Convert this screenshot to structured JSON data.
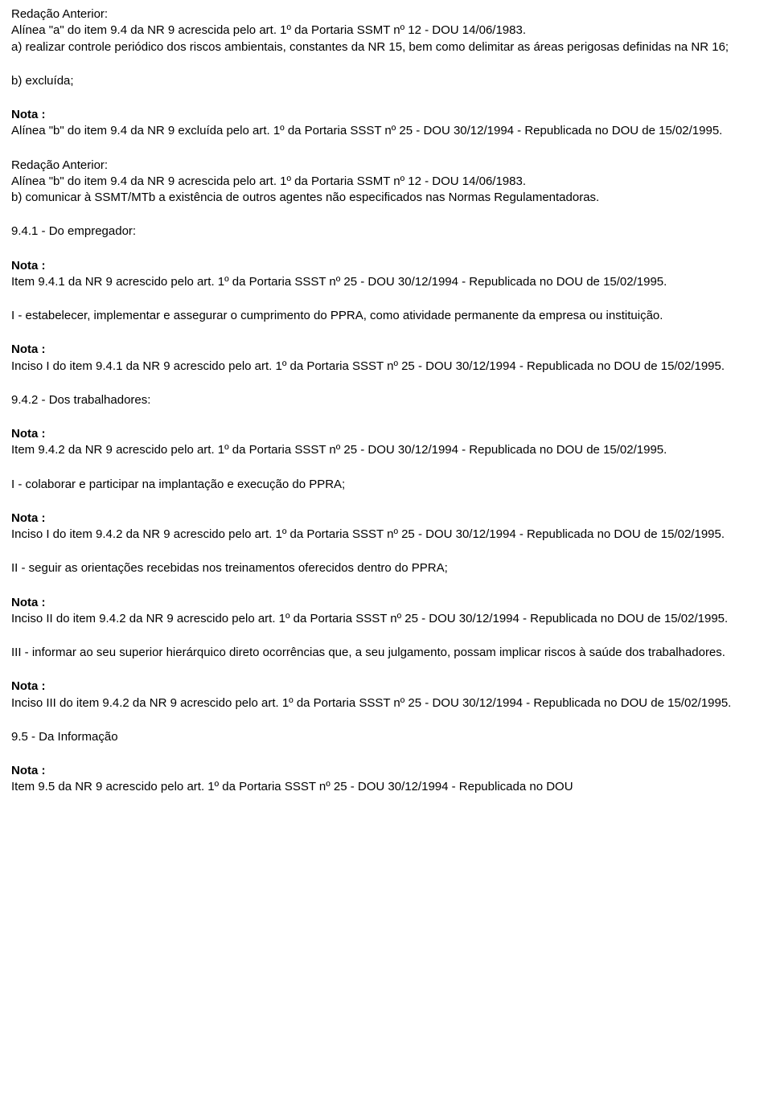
{
  "blocks": [
    {
      "lines": [
        {
          "text": "Redação Anterior:",
          "bold": false
        },
        {
          "text": "Alínea \"a\" do item 9.4 da NR 9 acrescida pelo art. 1º da Portaria SSMT nº 12 - DOU 14/06/1983.",
          "bold": false
        },
        {
          "text": "a) realizar controle periódico dos riscos ambientais, constantes da NR 15, bem como delimitar as áreas perigosas definidas na NR 16;",
          "bold": false
        }
      ]
    },
    {
      "lines": [
        {
          "text": "b) excluída;",
          "bold": false
        }
      ]
    },
    {
      "lines": [
        {
          "text": "Nota :",
          "bold": true
        },
        {
          "text": "Alínea \"b\" do item 9.4 da NR 9 excluída pelo art. 1º da Portaria SSST nº 25 - DOU 30/12/1994 - Republicada no DOU de 15/02/1995.",
          "bold": false
        }
      ]
    },
    {
      "lines": [
        {
          "text": "Redação Anterior:",
          "bold": false
        },
        {
          "text": "Alínea \"b\" do item 9.4 da NR 9 acrescida pelo art. 1º da Portaria SSMT nº 12 - DOU 14/06/1983.",
          "bold": false
        },
        {
          "text": "b) comunicar à SSMT/MTb a existência de outros agentes não especificados nas Normas Regulamentadoras.",
          "bold": false
        }
      ]
    },
    {
      "lines": [
        {
          "text": "9.4.1 - Do empregador:",
          "bold": false
        }
      ]
    },
    {
      "lines": [
        {
          "text": "Nota :",
          "bold": true
        },
        {
          "text": "Item 9.4.1 da NR 9 acrescido pelo art. 1º da Portaria SSST nº 25 - DOU 30/12/1994 - Republicada no DOU de 15/02/1995.",
          "bold": false
        }
      ]
    },
    {
      "lines": [
        {
          "text": "I - estabelecer, implementar e assegurar o cumprimento do PPRA, como atividade permanente da empresa ou instituição.",
          "bold": false
        }
      ]
    },
    {
      "lines": [
        {
          "text": "Nota :",
          "bold": true
        },
        {
          "text": "Inciso I do item 9.4.1 da NR 9 acrescido pelo art. 1º da Portaria SSST nº 25 - DOU 30/12/1994 - Republicada no DOU de 15/02/1995.",
          "bold": false
        }
      ]
    },
    {
      "lines": [
        {
          "text": "9.4.2 - Dos trabalhadores:",
          "bold": false
        }
      ]
    },
    {
      "lines": [
        {
          "text": "Nota :",
          "bold": true
        },
        {
          "text": "Item 9.4.2 da NR 9 acrescido pelo art. 1º da Portaria SSST nº 25 - DOU 30/12/1994 - Republicada no DOU de 15/02/1995.",
          "bold": false
        }
      ]
    },
    {
      "lines": [
        {
          "text": "I - colaborar e participar na implantação e execução do PPRA;",
          "bold": false
        }
      ]
    },
    {
      "lines": [
        {
          "text": "Nota :",
          "bold": true
        },
        {
          "text": "Inciso I do item 9.4.2 da NR 9 acrescido pelo art. 1º da Portaria SSST nº 25 - DOU 30/12/1994 - Republicada no DOU de 15/02/1995.",
          "bold": false
        }
      ]
    },
    {
      "lines": [
        {
          "text": "II - seguir as orientações recebidas nos treinamentos oferecidos dentro do PPRA;",
          "bold": false
        }
      ]
    },
    {
      "lines": [
        {
          "text": "Nota :",
          "bold": true
        },
        {
          "text": "Inciso II do item 9.4.2 da NR 9 acrescido pelo art. 1º da Portaria SSST nº 25 - DOU 30/12/1994 - Republicada no DOU de 15/02/1995.",
          "bold": false
        }
      ]
    },
    {
      "lines": [
        {
          "text": "III - informar ao seu superior hierárquico direto ocorrências que, a seu julgamento, possam implicar riscos à saúde dos trabalhadores.",
          "bold": false
        }
      ]
    },
    {
      "lines": [
        {
          "text": "Nota :",
          "bold": true
        },
        {
          "text": "Inciso III do item 9.4.2 da NR 9 acrescido pelo art. 1º da Portaria SSST nº 25 - DOU 30/12/1994 - Republicada no DOU de 15/02/1995.",
          "bold": false
        }
      ]
    },
    {
      "lines": [
        {
          "text": "9.5 - Da Informação",
          "bold": false
        }
      ]
    },
    {
      "lines": [
        {
          "text": "Nota :",
          "bold": true
        },
        {
          "text": "Item 9.5 da NR 9 acrescido pelo art. 1º da Portaria SSST nº 25 - DOU 30/12/1994 - Republicada no DOU",
          "bold": false
        }
      ]
    }
  ]
}
